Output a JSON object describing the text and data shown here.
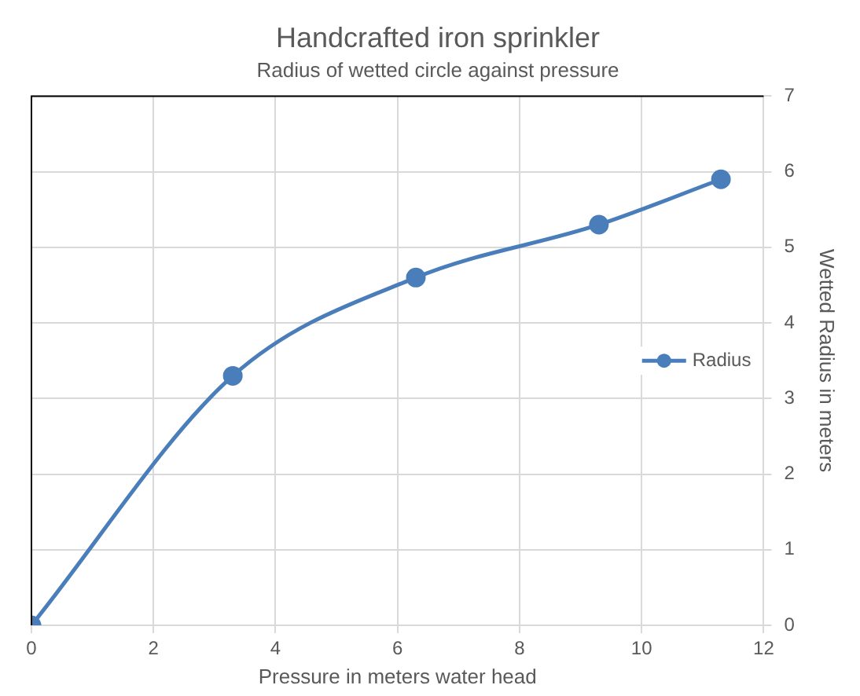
{
  "chart_data": {
    "type": "line",
    "title": "Handcrafted iron sprinkler",
    "subtitle": "Radius of wetted circle against pressure",
    "xlabel": "Pressure in meters water head",
    "ylabel": "Wetted Radius in meters",
    "x": [
      0,
      3.3,
      6.3,
      9.3,
      11.3
    ],
    "series": [
      {
        "name": "Radius",
        "color": "#4a7ebb",
        "values": [
          0,
          3.3,
          4.6,
          5.3,
          5.9
        ]
      }
    ],
    "xlim": [
      0,
      12
    ],
    "xticks": [
      0,
      2,
      4,
      6,
      8,
      10,
      12
    ],
    "ylim": [
      0,
      7
    ],
    "yticks": [
      0,
      1,
      2,
      3,
      4,
      5,
      6,
      7
    ],
    "grid": true,
    "legend": "right",
    "marker": "circle",
    "line_style": "solid"
  }
}
